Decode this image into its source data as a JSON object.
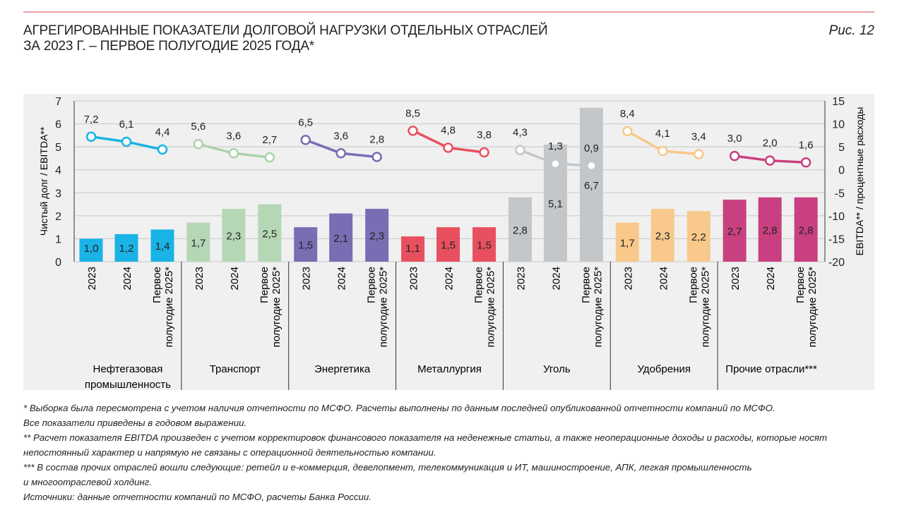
{
  "header": {
    "title_line1": "АГРЕГИРОВАННЫЕ ПОКАЗАТЕЛИ ДОЛГОВОЙ НАГРУЗКИ ОТДЕЛЬНЫХ ОТРАСЛЕЙ",
    "title_line2": "ЗА 2023 Г. – ПЕРВОЕ ПОЛУГОДИЕ 2025 ГОДА*",
    "figure": "Рис. 12"
  },
  "chart_data": {
    "type": "bar+line",
    "ylabel": "Чистый долг / EBITDA**",
    "y2label": "EBITDA** / процентные расходы",
    "ylim": [
      0,
      7
    ],
    "yticks": [
      0,
      1,
      2,
      3,
      4,
      5,
      6,
      7
    ],
    "y2lim": [
      -20,
      15
    ],
    "y2ticks": [
      -20,
      -15,
      -10,
      -5,
      0,
      5,
      10,
      15
    ],
    "periods": [
      "2023",
      "2024",
      "Первое|полугодие 2025*"
    ],
    "groups": [
      {
        "name": "Нефтегазовая|промышленность",
        "color": "#19b3e6",
        "line_color": "#19b3e6",
        "bars": [
          1.0,
          1.2,
          1.4
        ],
        "line": [
          7.2,
          6.1,
          4.4
        ]
      },
      {
        "name": "Транспорт",
        "color": "#b6d7b6",
        "line_color": "#acd2ac",
        "bars": [
          1.7,
          2.3,
          2.5
        ],
        "line": [
          5.6,
          3.6,
          2.7
        ]
      },
      {
        "name": "Энергетика",
        "color": "#7a6db3",
        "line_color": "#7a6db3",
        "bars": [
          1.5,
          2.1,
          2.3
        ],
        "line": [
          6.5,
          3.6,
          2.8
        ]
      },
      {
        "name": "Металлургия",
        "color": "#e8505f",
        "line_color": "#e8505f",
        "bars": [
          1.1,
          1.5,
          1.5
        ],
        "line": [
          8.5,
          4.8,
          3.8
        ]
      },
      {
        "name": "Уголь",
        "color": "#c4c7ca",
        "line_color": "#c4c7ca",
        "bars": [
          2.8,
          5.1,
          6.7
        ],
        "line": [
          4.3,
          1.3,
          0.9
        ]
      },
      {
        "name": "Удобрения",
        "color": "#f8c98b",
        "line_color": "#f8c98b",
        "bars": [
          1.7,
          2.3,
          2.2
        ],
        "line": [
          8.4,
          4.1,
          3.4
        ]
      },
      {
        "name": "Прочие отрасли***",
        "color": "#c8407f",
        "line_color": "#c8407f",
        "bars": [
          2.7,
          2.8,
          2.8
        ],
        "line": [
          3.0,
          2.0,
          1.6
        ]
      }
    ],
    "grid": true
  },
  "notes": [
    "* Выборка была пересмотрена с учетом наличия отчетности по МСФО. Расчеты выполнены по данным последней опубликованной отчетности компаний по МСФО.",
    "Все показатели приведены в годовом выражении.",
    "** Расчет показателя EBITDA произведен с учетом корректировок финансового показателя на неденежные статьи, а также неоперационные доходы и расходы, которые носят",
    "непостоянный характер и напрямую не связаны с операционной деятельностью компании.",
    "*** В состав прочих отраслей вошли следующие: ретейл и е-коммерция, девелопмент, телекоммуникация и ИТ, машиностроение, АПК, легкая промышленность",
    "и многоотраслевой холдинг.",
    "Источники: данные отчетности компаний по МСФО, расчеты Банка России."
  ]
}
